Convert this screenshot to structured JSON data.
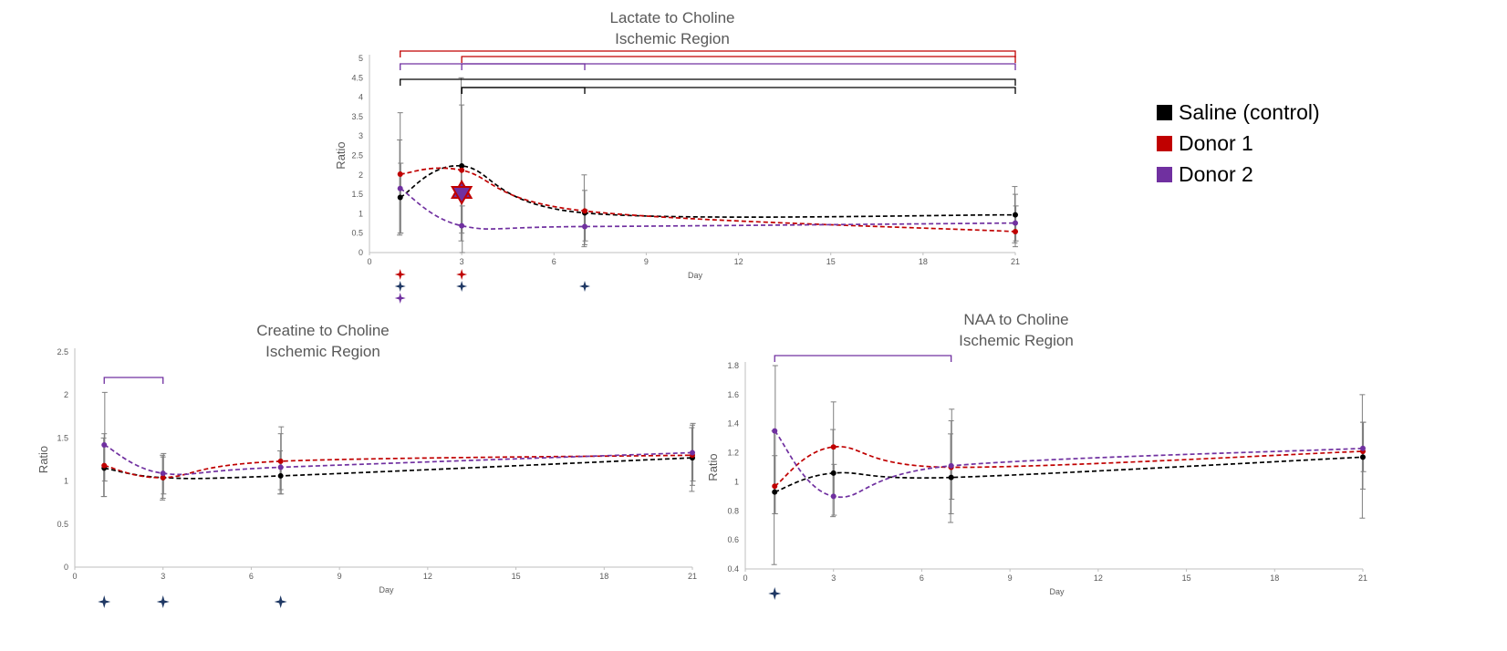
{
  "legend": [
    {
      "label": "Saline (control)",
      "color": "#000000"
    },
    {
      "label": "Donor 1",
      "color": "#c00000"
    },
    {
      "label": "Donor 2",
      "color": "#7030a0"
    }
  ],
  "chart_data": [
    {
      "type": "line",
      "title": "Lactate to Choline",
      "subtitle": "Ischemic Region",
      "xlabel": "Day",
      "ylabel": "Ratio",
      "xlim": [
        0,
        21
      ],
      "ylim": [
        0,
        5
      ],
      "xticks": [
        0,
        3,
        6,
        9,
        12,
        15,
        18,
        21
      ],
      "yticks": [
        0,
        0.5,
        1,
        1.5,
        2,
        2.5,
        3,
        3.5,
        4,
        4.5,
        5
      ],
      "x": [
        1,
        3,
        7,
        21
      ],
      "series": [
        {
          "name": "Saline (control)",
          "values": [
            1.42,
            2.23,
            1.02,
            0.97
          ],
          "error_low": [
            0.45,
            0.3,
            0.15,
            0.25
          ],
          "error_high": [
            2.9,
            4.5,
            2.0,
            1.7
          ]
        },
        {
          "name": "Donor 1",
          "values": [
            2.02,
            2.12,
            1.07,
            0.54
          ],
          "error_low": [
            0.5,
            0.5,
            0.2,
            0.15
          ],
          "error_high": [
            3.6,
            3.8,
            1.6,
            1.5
          ]
        },
        {
          "name": "Donor 2",
          "values": [
            1.65,
            0.69,
            0.67,
            0.76
          ],
          "error_low": [
            0.5,
            0.0,
            0.3,
            0.3
          ],
          "error_high": [
            2.3,
            1.2,
            1.1,
            1.2
          ]
        }
      ],
      "significance_brackets": [
        {
          "from": 1,
          "to": 21,
          "color": "red"
        },
        {
          "from": 3,
          "to": 21,
          "color": "red"
        },
        {
          "from": 1,
          "to": 7,
          "color": "purple"
        },
        {
          "from": 3,
          "to": 21,
          "color": "purple"
        },
        {
          "from": 1,
          "to": 21,
          "color": "black"
        },
        {
          "from": 3,
          "to": 7,
          "color": "black"
        },
        {
          "from": 3,
          "to": 21,
          "color": "black"
        }
      ],
      "star_annotation": {
        "x": 3,
        "y": 1.55
      },
      "sparkle_markers": [
        {
          "x": 1,
          "row": 0,
          "color": "red"
        },
        {
          "x": 3,
          "row": 0,
          "color": "red"
        },
        {
          "x": 1,
          "row": 1,
          "color": "navy"
        },
        {
          "x": 3,
          "row": 1,
          "color": "navy"
        },
        {
          "x": 7,
          "row": 1,
          "color": "navy"
        },
        {
          "x": 1,
          "row": 2,
          "color": "purple"
        }
      ]
    },
    {
      "type": "line",
      "title": "Creatine to Choline",
      "subtitle": "Ischemic Region",
      "xlabel": "Day",
      "ylabel": "Ratio",
      "xlim": [
        0,
        21
      ],
      "ylim": [
        0,
        2.5
      ],
      "xticks": [
        0,
        3,
        6,
        9,
        12,
        15,
        18,
        21
      ],
      "yticks": [
        0,
        0.5,
        1,
        1.5,
        2,
        2.5
      ],
      "x": [
        1,
        3,
        7,
        21
      ],
      "series": [
        {
          "name": "Saline (control)",
          "values": [
            1.15,
            1.04,
            1.06,
            1.27
          ],
          "error_low": [
            0.82,
            0.78,
            0.85,
            0.88
          ],
          "error_high": [
            1.5,
            1.3,
            1.35,
            1.62
          ]
        },
        {
          "name": "Donor 1",
          "values": [
            1.18,
            1.04,
            1.23,
            1.3
          ],
          "error_low": [
            0.82,
            0.8,
            0.9,
            0.95
          ],
          "error_high": [
            1.55,
            1.28,
            1.55,
            1.65
          ]
        },
        {
          "name": "Donor 2",
          "values": [
            1.42,
            1.09,
            1.16,
            1.33
          ],
          "error_low": [
            1.0,
            0.85,
            0.85,
            1.0
          ],
          "error_high": [
            2.03,
            1.32,
            1.63,
            1.67
          ]
        }
      ],
      "significance_brackets": [
        {
          "from": 1,
          "to": 3,
          "color": "purple"
        }
      ],
      "sparkle_markers": [
        {
          "x": 1,
          "row": 0,
          "color": "navy"
        },
        {
          "x": 3,
          "row": 0,
          "color": "navy"
        },
        {
          "x": 7,
          "row": 0,
          "color": "navy"
        }
      ]
    },
    {
      "type": "line",
      "title": "NAA to Choline",
      "subtitle": "Ischemic Region",
      "xlabel": "Day",
      "ylabel": "Ratio",
      "xlim": [
        0,
        21
      ],
      "ylim": [
        0.4,
        1.8
      ],
      "xticks": [
        0,
        3,
        6,
        9,
        12,
        15,
        18,
        21
      ],
      "yticks": [
        0.4,
        0.6,
        0.8,
        1,
        1.2,
        1.4,
        1.6,
        1.8
      ],
      "x": [
        1,
        3,
        7,
        21
      ],
      "series": [
        {
          "name": "Saline (control)",
          "values": [
            0.93,
            1.06,
            1.03,
            1.17
          ],
          "error_low": [
            0.43,
            0.76,
            0.72,
            0.75
          ],
          "error_high": [
            1.35,
            1.36,
            1.33,
            1.6
          ]
        },
        {
          "name": "Donor 1",
          "values": [
            0.97,
            1.24,
            1.1,
            1.21
          ],
          "error_low": [
            0.78,
            0.9,
            0.78,
            0.95
          ],
          "error_high": [
            1.18,
            1.55,
            1.42,
            1.41
          ]
        },
        {
          "name": "Donor 2",
          "values": [
            1.35,
            0.9,
            1.11,
            1.23
          ],
          "error_low": [
            0.78,
            0.77,
            0.88,
            1.07
          ],
          "error_high": [
            1.8,
            1.12,
            1.5,
            1.41
          ]
        }
      ],
      "significance_brackets": [
        {
          "from": 1,
          "to": 7,
          "color": "purple"
        }
      ],
      "sparkle_markers": [
        {
          "x": 1,
          "row": 0,
          "color": "navy"
        }
      ]
    }
  ],
  "colors": {
    "saline": "#000000",
    "donor1": "#c00000",
    "donor2": "#7030a0",
    "navy": "#1f3864",
    "red": "#c00000",
    "purple": "#7030a0",
    "black": "#000000",
    "axis": "#bfbfbf",
    "error_bar": "#7f7f7f",
    "star_fill": "#7030a0",
    "star_stroke": "#c00000"
  }
}
